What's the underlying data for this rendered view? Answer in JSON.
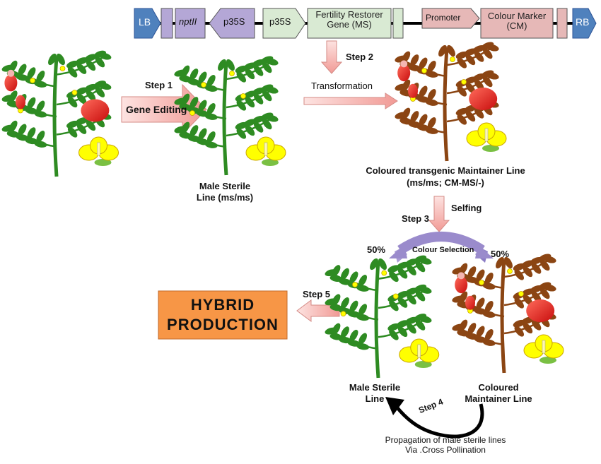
{
  "construct": {
    "lb": "LB",
    "nptii": "nptII",
    "p35s_left": "p35S",
    "p35s_right": "p35S",
    "fertility_restorer_line1": "Fertility Restorer",
    "fertility_restorer_line2": "Gene (MS)",
    "promoter": "Promoter",
    "colour_marker_line1": "Colour Marker",
    "colour_marker_line2": "(CM)",
    "rb": "RB"
  },
  "steps": {
    "step1": "Step 1",
    "gene_editing": "Gene Editing",
    "step2": "Step 2",
    "transformation": "Transformation",
    "step3": "Step 3",
    "selfing": "Selfing",
    "colour_selection": "Colour Selection",
    "step4": "Step 4",
    "step5": "Step 5"
  },
  "labels": {
    "male_sterile_line_1": "Male Sterile",
    "male_sterile_line_2": "Line (ms/ms)",
    "maintainer_line_1": "Coloured transgenic Maintainer Line",
    "maintainer_line_2": "(ms/ms; CM-MS/-)",
    "pct_left": "50%",
    "pct_right": "50%",
    "bottom_male_sterile_1": "Male Sterile",
    "bottom_male_sterile_2": "Line",
    "bottom_maintainer_1": "Coloured",
    "bottom_maintainer_2": "Maintainer  Line",
    "propagation_1": "Propagation of male sterile lines",
    "propagation_2": "Via .Cross  Pollination",
    "hybrid_1": "HYBRID",
    "hybrid_2": "PRODUCTION"
  },
  "colors": {
    "lb_rb": "#4f81bd",
    "purple_box": "#b4a7d6",
    "green_box": "#d9ead3",
    "pink_box": "#e6b8b7",
    "arrow_pink": "#f4b6b2",
    "hybrid_box": "#f79646",
    "plant_green": "#2e8b22",
    "plant_brown": "#8b4513",
    "flower_yellow": "#ffff00",
    "fruit_red": "#e02020"
  }
}
